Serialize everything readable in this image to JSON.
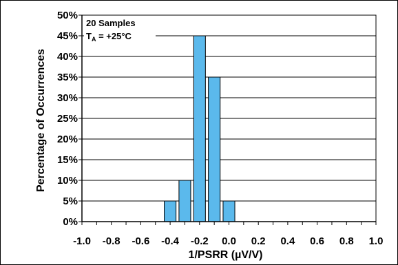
{
  "chart_data": {
    "type": "bar",
    "x": [
      -0.4,
      -0.3,
      -0.2,
      -0.1,
      0.0
    ],
    "values": [
      5,
      10,
      45,
      35,
      5
    ],
    "value_unit": "%",
    "xlabel": "1/PSRR (µV/V)",
    "ylabel": "Percentage of Occurrences",
    "xlim": [
      -1.0,
      1.0
    ],
    "ylim": [
      0,
      50
    ],
    "x_ticks": [
      -1.0,
      -0.8,
      -0.6,
      -0.4,
      -0.2,
      0.0,
      0.2,
      0.4,
      0.6,
      0.8,
      1.0
    ],
    "x_tick_labels": [
      "-1.0",
      "-0.8",
      "-0.6",
      "-0.4",
      "-0.2",
      "0.0",
      "0.2",
      "0.4",
      "0.6",
      "0.8",
      "1.0"
    ],
    "y_ticks": [
      0,
      5,
      10,
      15,
      20,
      25,
      30,
      35,
      40,
      45,
      50
    ],
    "y_tick_labels": [
      "0%",
      "5%",
      "10%",
      "15%",
      "20%",
      "25%",
      "30%",
      "35%",
      "40%",
      "45%",
      "50%"
    ],
    "bar_width": 0.08,
    "grid": "horizontal",
    "colors": {
      "bar_fill": "#5BB9EC",
      "bar_edge": "#000000",
      "grid": "#000000",
      "axis": "#000000"
    },
    "annotations": {
      "samples": "20 Samples",
      "temp_prefix": "T",
      "temp_subscript": "A",
      "temp_suffix": " = +25°C"
    }
  }
}
